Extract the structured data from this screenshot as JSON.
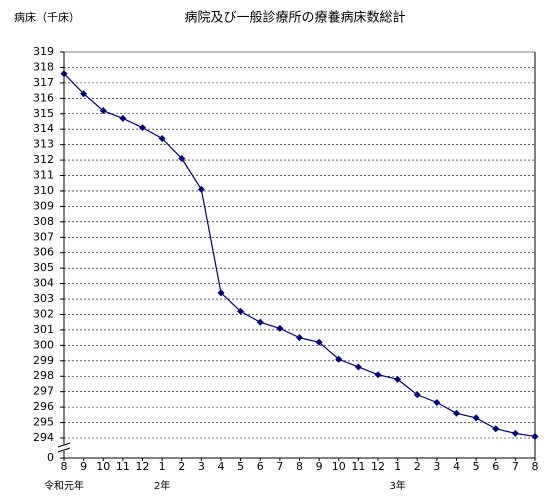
{
  "chart_data": {
    "type": "line",
    "title": "病院及び一般診療所の療養病床数総計",
    "y_label": "病床（千床）",
    "categories": [
      "8",
      "9",
      "10",
      "11",
      "12",
      "1",
      "2",
      "3",
      "4",
      "5",
      "6",
      "7",
      "8",
      "9",
      "10",
      "11",
      "12",
      "1",
      "2",
      "3",
      "4",
      "5",
      "6",
      "7",
      "8"
    ],
    "year_labels": [
      "令和元年",
      null,
      null,
      null,
      null,
      "2年",
      null,
      null,
      null,
      null,
      null,
      null,
      null,
      null,
      null,
      null,
      null,
      "3年",
      null,
      null,
      null,
      null,
      null,
      null,
      null
    ],
    "series": [
      {
        "color": "#000080",
        "values": [
          317.6,
          316.3,
          315.2,
          314.7,
          314.1,
          313.4,
          312.1,
          310.1,
          303.4,
          302.2,
          301.5,
          301.1,
          300.5,
          300.2,
          299.1,
          298.6,
          298.1,
          297.8,
          296.8,
          296.3,
          295.6,
          295.3,
          294.6,
          294.3,
          294.1
        ]
      }
    ],
    "ylim": [
      0,
      319
    ],
    "yticks": [
      0,
      294,
      295,
      296,
      297,
      298,
      299,
      300,
      301,
      302,
      303,
      304,
      305,
      306,
      307,
      308,
      309,
      310,
      311,
      312,
      313,
      314,
      315,
      316,
      317,
      318,
      319
    ],
    "y_break": true,
    "grid": true
  }
}
